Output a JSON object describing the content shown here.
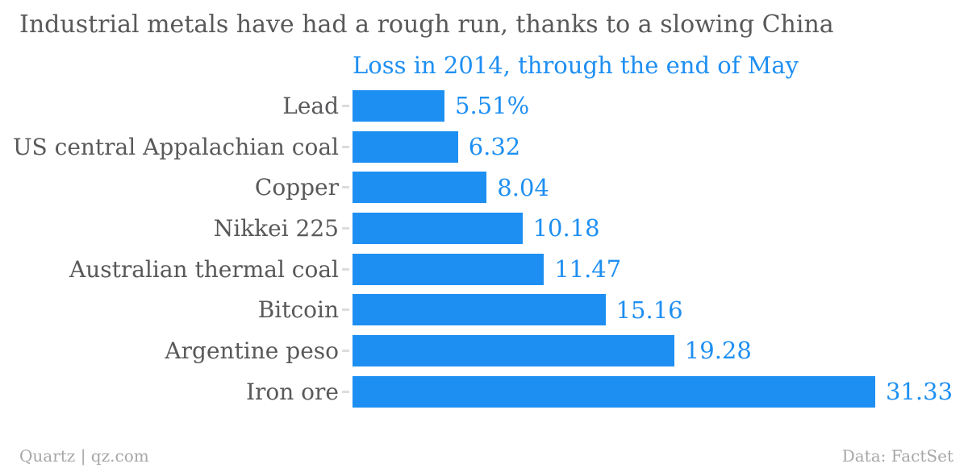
{
  "title": "Industrial metals have had a rough run, thanks to a slowing China",
  "subtitle": "Loss in 2014, through the end of May",
  "footer": {
    "attribution": "Quartz | qz.com",
    "source": "Data: FactSet"
  },
  "colors": {
    "accent": "#1e8ff2",
    "label_gray": "#59595b",
    "footer_gray": "#a7a7a7",
    "tick_gray": "#dcdcdc",
    "background": "#ffffff"
  },
  "chart_data": {
    "type": "bar",
    "orientation": "horizontal",
    "title": "Loss in 2014, through the end of May",
    "categories": [
      "Lead",
      "US central Appalachian coal",
      "Copper",
      "Nikkei 225",
      "Australian thermal coal",
      "Bitcoin",
      "Argentine peso",
      "Iron ore"
    ],
    "values": [
      5.51,
      6.32,
      8.04,
      10.18,
      11.47,
      15.16,
      19.28,
      31.33
    ],
    "value_labels": [
      "5.51%",
      "6.32",
      "8.04",
      "10.18",
      "11.47",
      "15.16",
      "19.28",
      "31.33"
    ],
    "unit": "%",
    "xlim": [
      0,
      31.33
    ],
    "grid": false,
    "legend": false,
    "sort": "ascending",
    "value_label_position": "outside-end"
  }
}
